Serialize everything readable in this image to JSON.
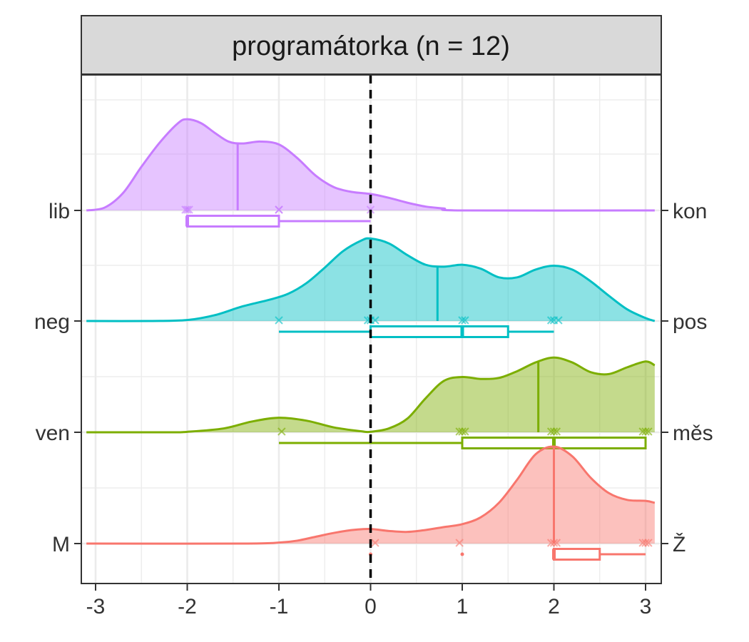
{
  "chart_data": {
    "type": "ridgeline",
    "title": "programátorka (n = 12)",
    "xlabel": "",
    "ylabel": "",
    "xlim": [
      -3,
      3
    ],
    "x_ticks": [
      "-3",
      "-2",
      "-1",
      "0",
      "1",
      "2",
      "3"
    ],
    "reference_line_x": 0,
    "grid": true,
    "rows": [
      {
        "left_label": "lib",
        "right_label": "kon",
        "color": "#C77CFF",
        "density": [
          [
            -3.1,
            0.0
          ],
          [
            -2.9,
            0.03
          ],
          [
            -2.7,
            0.18
          ],
          [
            -2.5,
            0.45
          ],
          [
            -2.3,
            0.7
          ],
          [
            -2.1,
            0.9
          ],
          [
            -2.0,
            0.94
          ],
          [
            -1.85,
            0.9
          ],
          [
            -1.7,
            0.8
          ],
          [
            -1.55,
            0.71
          ],
          [
            -1.4,
            0.69
          ],
          [
            -1.2,
            0.71
          ],
          [
            -1.0,
            0.68
          ],
          [
            -0.8,
            0.54
          ],
          [
            -0.6,
            0.36
          ],
          [
            -0.4,
            0.24
          ],
          [
            -0.2,
            0.19
          ],
          [
            0.0,
            0.17
          ],
          [
            0.2,
            0.13
          ],
          [
            0.4,
            0.08
          ],
          [
            0.6,
            0.04
          ],
          [
            0.8,
            0.02
          ],
          [
            1.0,
            0.0
          ],
          [
            3.1,
            0.0
          ]
        ],
        "median": -1.45,
        "points": [
          -2.02,
          -2.0,
          -1.98,
          -1.0,
          -1.0,
          0.0
        ],
        "box": {
          "min": -2.0,
          "q1": -2.0,
          "median": -2.0,
          "q3": -1.0,
          "max": 0.0
        }
      },
      {
        "left_label": "neg",
        "right_label": "pos",
        "color": "#00BFC4",
        "density": [
          [
            -3.1,
            0.0
          ],
          [
            -2.4,
            0.0
          ],
          [
            -2.0,
            0.01
          ],
          [
            -1.7,
            0.06
          ],
          [
            -1.4,
            0.15
          ],
          [
            -1.1,
            0.22
          ],
          [
            -0.9,
            0.28
          ],
          [
            -0.7,
            0.39
          ],
          [
            -0.5,
            0.55
          ],
          [
            -0.3,
            0.72
          ],
          [
            -0.1,
            0.83
          ],
          [
            0.0,
            0.85
          ],
          [
            0.2,
            0.8
          ],
          [
            0.4,
            0.68
          ],
          [
            0.6,
            0.58
          ],
          [
            0.8,
            0.56
          ],
          [
            1.0,
            0.58
          ],
          [
            1.2,
            0.54
          ],
          [
            1.4,
            0.45
          ],
          [
            1.6,
            0.45
          ],
          [
            1.8,
            0.53
          ],
          [
            2.0,
            0.57
          ],
          [
            2.2,
            0.53
          ],
          [
            2.4,
            0.41
          ],
          [
            2.6,
            0.26
          ],
          [
            2.8,
            0.12
          ],
          [
            3.0,
            0.03
          ],
          [
            3.1,
            0.0
          ]
        ],
        "median": 0.73,
        "points": [
          -1.0,
          -0.03,
          0.0,
          0.05,
          1.0,
          1.03,
          1.97,
          2.0,
          2.05
        ],
        "box": {
          "min": -1.0,
          "q1": 0.0,
          "median": 1.0,
          "q3": 1.5,
          "max": 2.0
        }
      },
      {
        "left_label": "ven",
        "right_label": "měs",
        "color": "#7CAE00",
        "density": [
          [
            -3.1,
            0.0
          ],
          [
            -2.2,
            0.0
          ],
          [
            -2.0,
            0.005
          ],
          [
            -1.6,
            0.04
          ],
          [
            -1.3,
            0.11
          ],
          [
            -1.0,
            0.15
          ],
          [
            -0.7,
            0.12
          ],
          [
            -0.4,
            0.05
          ],
          [
            -0.1,
            0.01
          ],
          [
            0.0,
            0.005
          ],
          [
            0.2,
            0.04
          ],
          [
            0.4,
            0.14
          ],
          [
            0.6,
            0.35
          ],
          [
            0.8,
            0.53
          ],
          [
            1.0,
            0.57
          ],
          [
            1.2,
            0.55
          ],
          [
            1.4,
            0.56
          ],
          [
            1.6,
            0.63
          ],
          [
            1.8,
            0.72
          ],
          [
            2.0,
            0.77
          ],
          [
            2.2,
            0.72
          ],
          [
            2.4,
            0.62
          ],
          [
            2.6,
            0.6
          ],
          [
            2.8,
            0.67
          ],
          [
            3.0,
            0.73
          ],
          [
            3.1,
            0.69
          ]
        ],
        "median": 1.83,
        "points": [
          -0.97,
          0.97,
          1.0,
          1.03,
          1.97,
          2.0,
          2.03,
          2.97,
          3.0,
          3.03
        ],
        "box": {
          "min": -1.0,
          "q1": 1.0,
          "median": 2.0,
          "q3": 3.0,
          "max": 3.0
        }
      },
      {
        "left_label": "M",
        "right_label": "Ž",
        "color": "#F8766D",
        "density": [
          [
            -3.1,
            0.0
          ],
          [
            -1.4,
            0.0
          ],
          [
            -1.0,
            0.01
          ],
          [
            -0.8,
            0.03
          ],
          [
            -0.6,
            0.07
          ],
          [
            -0.4,
            0.11
          ],
          [
            -0.2,
            0.14
          ],
          [
            0.0,
            0.15
          ],
          [
            0.2,
            0.13
          ],
          [
            0.4,
            0.12
          ],
          [
            0.6,
            0.14
          ],
          [
            0.8,
            0.17
          ],
          [
            1.0,
            0.2
          ],
          [
            1.2,
            0.27
          ],
          [
            1.4,
            0.42
          ],
          [
            1.6,
            0.66
          ],
          [
            1.8,
            0.92
          ],
          [
            2.0,
            1.0
          ],
          [
            2.2,
            0.9
          ],
          [
            2.4,
            0.68
          ],
          [
            2.6,
            0.52
          ],
          [
            2.8,
            0.45
          ],
          [
            3.0,
            0.44
          ],
          [
            3.1,
            0.42
          ]
        ],
        "median": 2.0,
        "points": [
          0.05,
          0.97,
          1.97,
          2.0,
          2.03,
          2.97,
          3.0,
          3.03
        ],
        "box": {
          "min": 2.0,
          "q1": 2.0,
          "median": 2.0,
          "q3": 2.5,
          "max": 3.0,
          "outliers": [
            0.0,
            1.0
          ]
        }
      }
    ]
  }
}
